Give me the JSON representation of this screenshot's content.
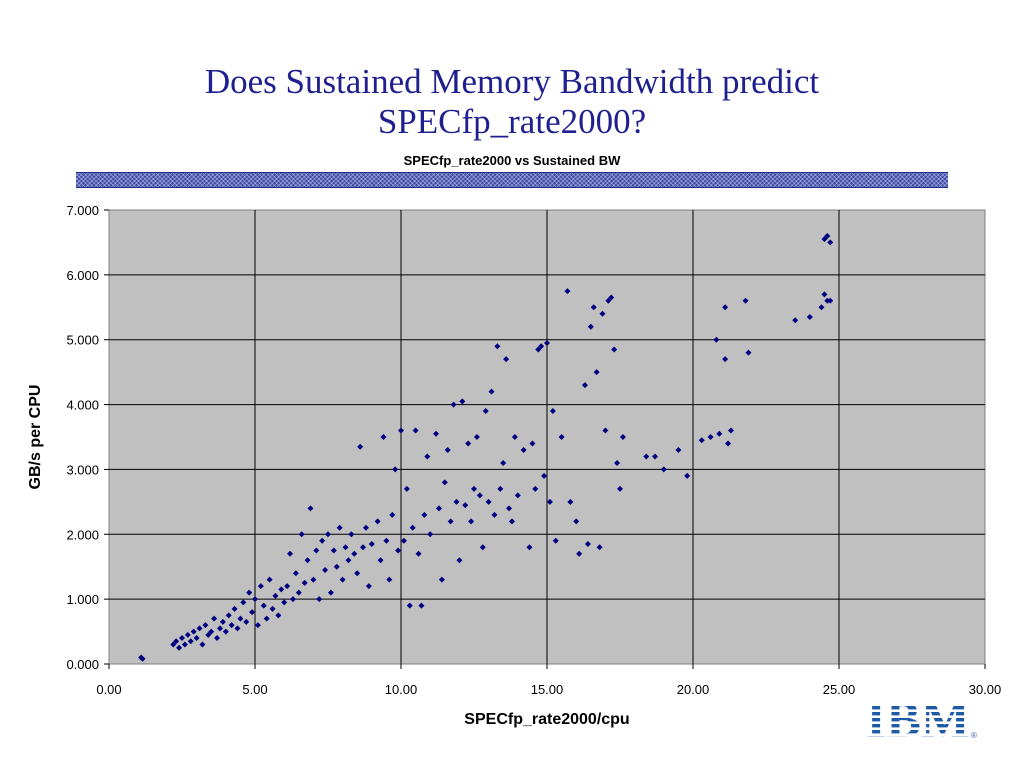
{
  "slide": {
    "title_line1": "Does Sustained Memory Bandwidth predict",
    "title_line2": "SPECfp_rate2000?"
  },
  "logo": {
    "text": "IBM",
    "color": "#1f5aa6"
  },
  "chart_data": {
    "type": "scatter",
    "title": "SPECfp_rate2000 vs Sustained BW",
    "xlabel": "SPECfp_rate2000/cpu",
    "ylabel": "GB/s per CPU",
    "xlim": [
      0,
      30
    ],
    "ylim": [
      0,
      7
    ],
    "x_ticks": [
      "0.00",
      "5.00",
      "10.00",
      "15.00",
      "20.00",
      "25.00",
      "30.00"
    ],
    "y_ticks": [
      "0.000",
      "1.000",
      "2.000",
      "3.000",
      "4.000",
      "5.000",
      "6.000",
      "7.000"
    ],
    "grid": true,
    "legend": "none",
    "plot_background": "#c0c0c0",
    "marker_color": "#000080",
    "points": [
      [
        1.1,
        0.1
      ],
      [
        1.15,
        0.08
      ],
      [
        2.2,
        0.3
      ],
      [
        2.3,
        0.35
      ],
      [
        2.4,
        0.25
      ],
      [
        2.5,
        0.4
      ],
      [
        2.6,
        0.3
      ],
      [
        2.7,
        0.45
      ],
      [
        2.8,
        0.35
      ],
      [
        2.9,
        0.5
      ],
      [
        3.0,
        0.4
      ],
      [
        3.1,
        0.55
      ],
      [
        3.2,
        0.3
      ],
      [
        3.3,
        0.6
      ],
      [
        3.4,
        0.45
      ],
      [
        3.5,
        0.5
      ],
      [
        3.6,
        0.7
      ],
      [
        3.7,
        0.4
      ],
      [
        3.8,
        0.55
      ],
      [
        3.9,
        0.65
      ],
      [
        4.0,
        0.5
      ],
      [
        4.1,
        0.75
      ],
      [
        4.2,
        0.6
      ],
      [
        4.3,
        0.85
      ],
      [
        4.4,
        0.55
      ],
      [
        4.5,
        0.7
      ],
      [
        4.6,
        0.95
      ],
      [
        4.7,
        0.65
      ],
      [
        4.8,
        1.1
      ],
      [
        4.9,
        0.8
      ],
      [
        5.0,
        1.0
      ],
      [
        5.1,
        0.6
      ],
      [
        5.2,
        1.2
      ],
      [
        5.3,
        0.9
      ],
      [
        5.4,
        0.7
      ],
      [
        5.5,
        1.3
      ],
      [
        5.6,
        0.85
      ],
      [
        5.7,
        1.05
      ],
      [
        5.8,
        0.75
      ],
      [
        5.9,
        1.15
      ],
      [
        6.0,
        0.95
      ],
      [
        6.1,
        1.2
      ],
      [
        6.2,
        1.7
      ],
      [
        6.3,
        1.0
      ],
      [
        6.4,
        1.4
      ],
      [
        6.5,
        1.1
      ],
      [
        6.6,
        2.0
      ],
      [
        6.7,
        1.25
      ],
      [
        6.8,
        1.6
      ],
      [
        6.9,
        2.4
      ],
      [
        7.0,
        1.3
      ],
      [
        7.1,
        1.75
      ],
      [
        7.2,
        1.0
      ],
      [
        7.3,
        1.9
      ],
      [
        7.4,
        1.45
      ],
      [
        7.5,
        2.0
      ],
      [
        7.6,
        1.1
      ],
      [
        7.7,
        1.75
      ],
      [
        7.8,
        1.5
      ],
      [
        7.9,
        2.1
      ],
      [
        8.0,
        1.3
      ],
      [
        8.1,
        1.8
      ],
      [
        8.2,
        1.6
      ],
      [
        8.3,
        2.0
      ],
      [
        8.4,
        1.7
      ],
      [
        8.5,
        1.4
      ],
      [
        8.6,
        3.35
      ],
      [
        8.7,
        1.8
      ],
      [
        8.8,
        2.1
      ],
      [
        8.9,
        1.2
      ],
      [
        9.0,
        1.85
      ],
      [
        9.2,
        2.2
      ],
      [
        9.3,
        1.6
      ],
      [
        9.4,
        3.5
      ],
      [
        9.5,
        1.9
      ],
      [
        9.6,
        1.3
      ],
      [
        9.7,
        2.3
      ],
      [
        9.8,
        3.0
      ],
      [
        9.9,
        1.75
      ],
      [
        10.0,
        3.6
      ],
      [
        10.1,
        1.9
      ],
      [
        10.2,
        2.7
      ],
      [
        10.3,
        0.9
      ],
      [
        10.4,
        2.1
      ],
      [
        10.5,
        3.6
      ],
      [
        10.6,
        1.7
      ],
      [
        10.7,
        0.9
      ],
      [
        10.8,
        2.3
      ],
      [
        10.9,
        3.2
      ],
      [
        11.0,
        2.0
      ],
      [
        11.2,
        3.55
      ],
      [
        11.3,
        2.4
      ],
      [
        11.4,
        1.3
      ],
      [
        11.5,
        2.8
      ],
      [
        11.6,
        3.3
      ],
      [
        11.7,
        2.2
      ],
      [
        11.8,
        4.0
      ],
      [
        11.9,
        2.5
      ],
      [
        12.0,
        1.6
      ],
      [
        12.1,
        4.05
      ],
      [
        12.2,
        2.45
      ],
      [
        12.3,
        3.4
      ],
      [
        12.4,
        2.2
      ],
      [
        12.5,
        2.7
      ],
      [
        12.6,
        3.5
      ],
      [
        12.7,
        2.6
      ],
      [
        12.8,
        1.8
      ],
      [
        12.9,
        3.9
      ],
      [
        13.0,
        2.5
      ],
      [
        13.1,
        4.2
      ],
      [
        13.2,
        2.3
      ],
      [
        13.3,
        4.9
      ],
      [
        13.4,
        2.7
      ],
      [
        13.5,
        3.1
      ],
      [
        13.6,
        4.7
      ],
      [
        13.7,
        2.4
      ],
      [
        13.8,
        2.2
      ],
      [
        13.9,
        3.5
      ],
      [
        14.0,
        2.6
      ],
      [
        14.2,
        3.3
      ],
      [
        14.4,
        1.8
      ],
      [
        14.5,
        3.4
      ],
      [
        14.6,
        2.7
      ],
      [
        14.7,
        4.85
      ],
      [
        14.8,
        4.9
      ],
      [
        14.9,
        2.9
      ],
      [
        15.0,
        4.95
      ],
      [
        15.1,
        2.5
      ],
      [
        15.2,
        3.9
      ],
      [
        15.3,
        1.9
      ],
      [
        15.5,
        3.5
      ],
      [
        15.7,
        5.75
      ],
      [
        15.8,
        2.5
      ],
      [
        16.0,
        2.2
      ],
      [
        16.1,
        1.7
      ],
      [
        16.3,
        4.3
      ],
      [
        16.4,
        1.85
      ],
      [
        16.5,
        5.2
      ],
      [
        16.6,
        5.5
      ],
      [
        16.7,
        4.5
      ],
      [
        16.8,
        1.8
      ],
      [
        16.9,
        5.4
      ],
      [
        17.0,
        3.6
      ],
      [
        17.1,
        5.6
      ],
      [
        17.2,
        5.65
      ],
      [
        17.3,
        4.85
      ],
      [
        17.4,
        3.1
      ],
      [
        17.5,
        2.7
      ],
      [
        17.6,
        3.5
      ],
      [
        18.4,
        3.2
      ],
      [
        18.7,
        3.2
      ],
      [
        19.0,
        3.0
      ],
      [
        19.5,
        3.3
      ],
      [
        19.8,
        2.9
      ],
      [
        20.3,
        3.45
      ],
      [
        20.6,
        3.5
      ],
      [
        20.8,
        5.0
      ],
      [
        20.9,
        3.55
      ],
      [
        21.1,
        5.5
      ],
      [
        21.1,
        4.7
      ],
      [
        21.2,
        3.4
      ],
      [
        21.3,
        3.6
      ],
      [
        21.8,
        5.6
      ],
      [
        21.9,
        4.8
      ],
      [
        23.5,
        5.3
      ],
      [
        24.0,
        5.35
      ],
      [
        24.4,
        5.5
      ],
      [
        24.5,
        5.7
      ],
      [
        24.6,
        5.6
      ],
      [
        24.7,
        5.6
      ],
      [
        24.5,
        6.55
      ],
      [
        24.6,
        6.6
      ],
      [
        24.7,
        6.5
      ]
    ]
  }
}
